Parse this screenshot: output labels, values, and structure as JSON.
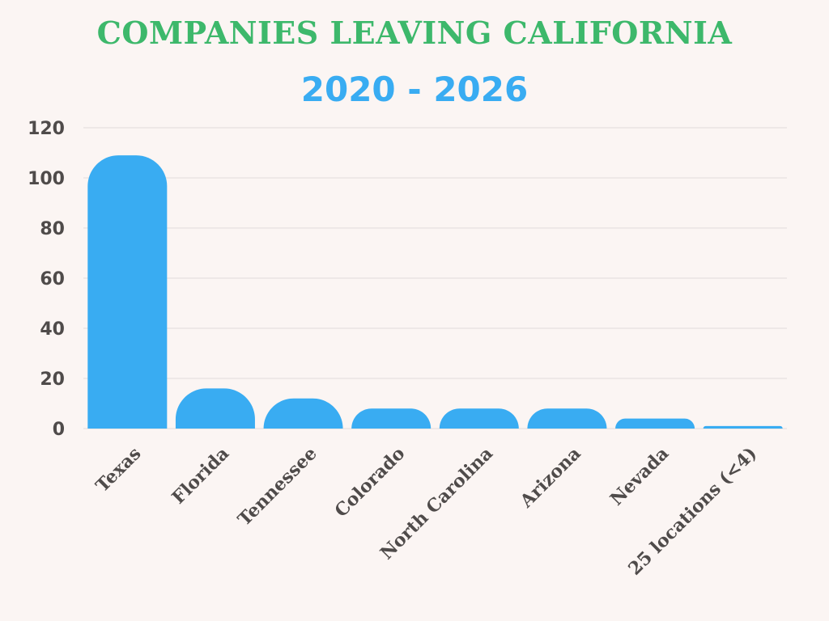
{
  "colors": {
    "background": "#fbf5f3",
    "title": "#3db86b",
    "subtitle": "#39acf2",
    "bar": "#39acf2",
    "grid": "#e2dcdb",
    "text": "#4f4b4a"
  },
  "chart_data": {
    "type": "bar",
    "title": "COMPANIES LEAVING CALIFORNIA",
    "subtitle": "2020 - 2026",
    "xlabel": "",
    "ylabel": "",
    "categories": [
      "Texas",
      "Florida",
      "Tennessee",
      "Colorado",
      "North Carolina",
      "Arizona",
      "Nevada",
      "25 locations (<4)"
    ],
    "values": [
      109,
      16,
      12,
      8,
      8,
      8,
      4,
      1
    ],
    "ylim": [
      0,
      120
    ],
    "yticks": [
      "0",
      "20",
      "40",
      "60",
      "80",
      "100",
      "120"
    ],
    "grid": true,
    "legend": "none"
  }
}
